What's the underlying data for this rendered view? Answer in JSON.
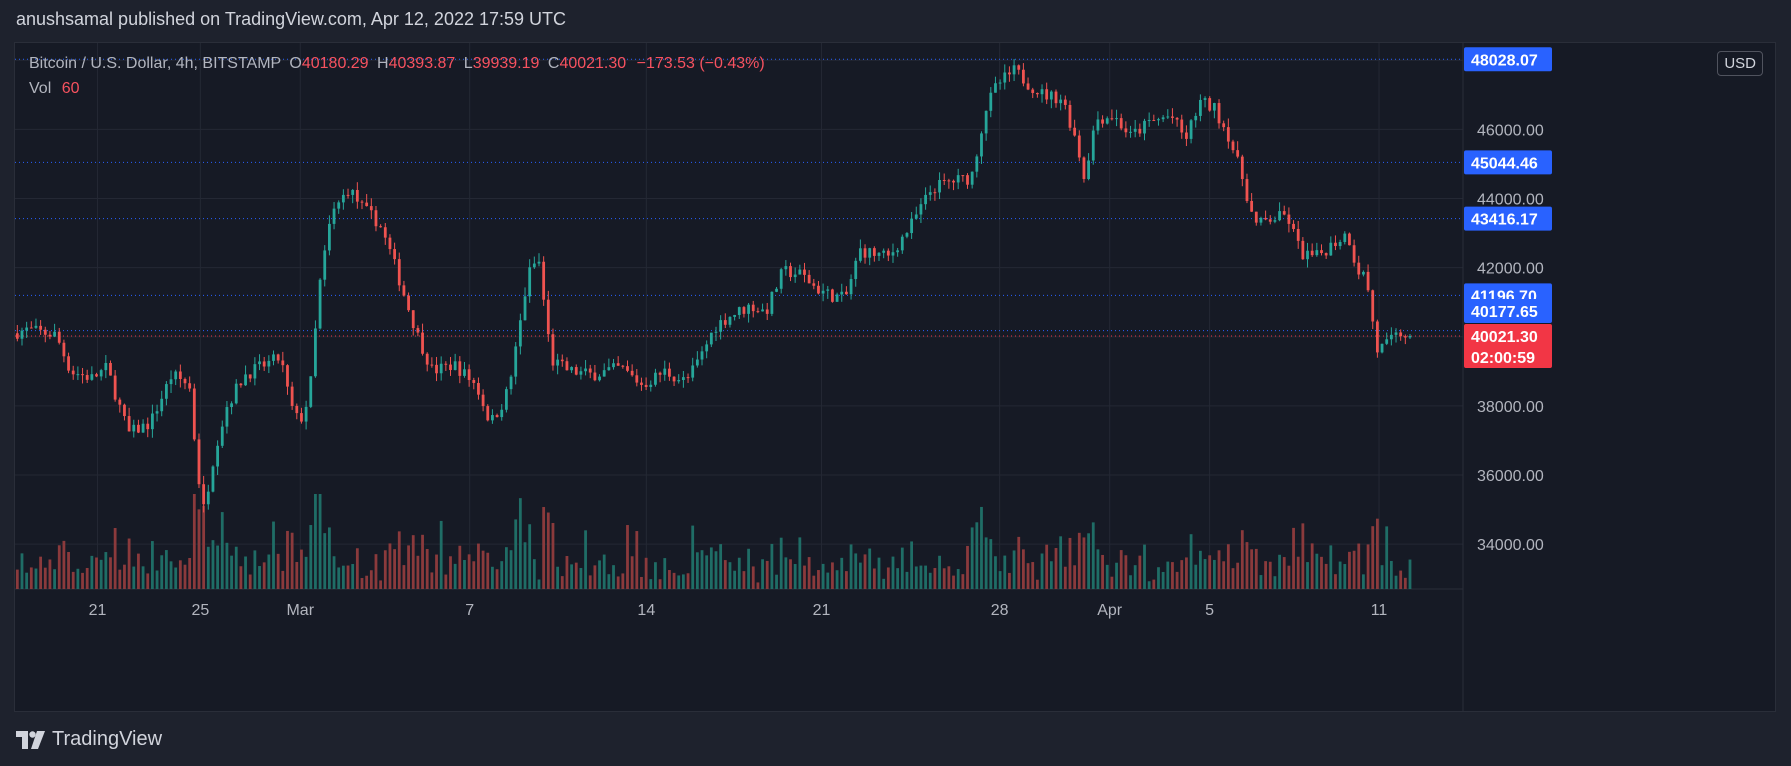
{
  "publisher": "anushsamal published on TradingView.com, Apr 12, 2022 17:59 UTC",
  "legend": {
    "symbol": "Bitcoin / U.S. Dollar, 4h, BITSTAMP",
    "open_label": "O",
    "open": "40180.29",
    "high_label": "H",
    "high": "40393.87",
    "low_label": "L",
    "low": "39939.19",
    "close_label": "C",
    "close": "40021.30",
    "change": "−173.53 (−0.43%)",
    "vol_label": "Vol",
    "vol_value": "60"
  },
  "currency": "USD",
  "footer": {
    "brand": "TradingView"
  },
  "colors": {
    "up": "#26a69a",
    "down": "#ef5350",
    "up_vol": "#1f6d66",
    "down_vol": "#8b3a3c",
    "tag_blue": "#2962ff",
    "tag_red": "#f23645",
    "grid": "#242834",
    "level_line": "#2962ff"
  },
  "chart_data": {
    "type": "candlestick",
    "ylim": [
      32700,
      48500
    ],
    "y_ticks": [
      34000,
      36000,
      38000,
      40000,
      42000,
      44000,
      46000,
      48000
    ],
    "y_tick_labels": [
      "34000.00",
      "36000.00",
      "38000.00",
      "40000.00",
      "42000.00",
      "44000.00",
      "46000.00",
      "48000.00"
    ],
    "x_ticks": [
      {
        "label": "21",
        "x": 0.057
      },
      {
        "label": "25",
        "x": 0.128
      },
      {
        "label": "Mar",
        "x": 0.197
      },
      {
        "label": "7",
        "x": 0.314
      },
      {
        "label": "14",
        "x": 0.436
      },
      {
        "label": "21",
        "x": 0.557
      },
      {
        "label": "28",
        "x": 0.68
      },
      {
        "label": "Apr",
        "x": 0.756
      },
      {
        "label": "5",
        "x": 0.825
      },
      {
        "label": "11",
        "x": 0.942
      }
    ],
    "levels": [
      {
        "value": 48028.07,
        "label": "48028.07",
        "kind": "blue"
      },
      {
        "value": 45044.46,
        "label": "45044.46",
        "kind": "blue"
      },
      {
        "value": 43416.17,
        "label": "43416.17",
        "kind": "blue"
      },
      {
        "value": 41196.7,
        "label": "41196.70",
        "kind": "blue"
      },
      {
        "value": 40177.65,
        "label": "40177.65",
        "kind": "blue"
      }
    ],
    "last_price": {
      "value": 40021.3,
      "label": "40021.30",
      "countdown": "02:00:59"
    },
    "anchors": [
      [
        0.0,
        40100
      ],
      [
        0.01,
        40200
      ],
      [
        0.03,
        40050
      ],
      [
        0.04,
        39000
      ],
      [
        0.055,
        38800
      ],
      [
        0.065,
        39100
      ],
      [
        0.08,
        37200
      ],
      [
        0.095,
        37500
      ],
      [
        0.11,
        38900
      ],
      [
        0.122,
        38600
      ],
      [
        0.128,
        36000
      ],
      [
        0.132,
        35000
      ],
      [
        0.14,
        36800
      ],
      [
        0.148,
        38000
      ],
      [
        0.16,
        38900
      ],
      [
        0.175,
        39200
      ],
      [
        0.185,
        39400
      ],
      [
        0.192,
        38000
      ],
      [
        0.198,
        37500
      ],
      [
        0.205,
        38300
      ],
      [
        0.212,
        41500
      ],
      [
        0.22,
        43500
      ],
      [
        0.232,
        44300
      ],
      [
        0.242,
        43700
      ],
      [
        0.253,
        43300
      ],
      [
        0.262,
        42300
      ],
      [
        0.272,
        41000
      ],
      [
        0.28,
        40000
      ],
      [
        0.29,
        39000
      ],
      [
        0.305,
        39200
      ],
      [
        0.32,
        38600
      ],
      [
        0.33,
        37500
      ],
      [
        0.34,
        38200
      ],
      [
        0.345,
        39000
      ],
      [
        0.356,
        41800
      ],
      [
        0.363,
        42300
      ],
      [
        0.372,
        39300
      ],
      [
        0.385,
        39000
      ],
      [
        0.4,
        38900
      ],
      [
        0.42,
        39100
      ],
      [
        0.435,
        38600
      ],
      [
        0.45,
        39000
      ],
      [
        0.465,
        38700
      ],
      [
        0.475,
        39400
      ],
      [
        0.485,
        40300
      ],
      [
        0.495,
        40600
      ],
      [
        0.51,
        40900
      ],
      [
        0.52,
        40700
      ],
      [
        0.532,
        41900
      ],
      [
        0.545,
        41800
      ],
      [
        0.555,
        41400
      ],
      [
        0.565,
        41200
      ],
      [
        0.575,
        41100
      ],
      [
        0.585,
        42500
      ],
      [
        0.595,
        42400
      ],
      [
        0.605,
        42300
      ],
      [
        0.62,
        43200
      ],
      [
        0.635,
        44300
      ],
      [
        0.648,
        44500
      ],
      [
        0.662,
        44600
      ],
      [
        0.672,
        46600
      ],
      [
        0.68,
        47300
      ],
      [
        0.692,
        47700
      ],
      [
        0.702,
        47300
      ],
      [
        0.712,
        47000
      ],
      [
        0.725,
        46900
      ],
      [
        0.735,
        45600
      ],
      [
        0.74,
        44600
      ],
      [
        0.748,
        46300
      ],
      [
        0.76,
        46400
      ],
      [
        0.772,
        45800
      ],
      [
        0.785,
        46200
      ],
      [
        0.8,
        46400
      ],
      [
        0.81,
        45700
      ],
      [
        0.82,
        46800
      ],
      [
        0.83,
        46600
      ],
      [
        0.84,
        45800
      ],
      [
        0.85,
        44500
      ],
      [
        0.858,
        43200
      ],
      [
        0.868,
        43400
      ],
      [
        0.88,
        43500
      ],
      [
        0.89,
        42400
      ],
      [
        0.9,
        42300
      ],
      [
        0.912,
        42700
      ],
      [
        0.922,
        43000
      ],
      [
        0.928,
        42000
      ],
      [
        0.935,
        41700
      ],
      [
        0.942,
        39600
      ],
      [
        0.95,
        39800
      ],
      [
        0.958,
        40100
      ],
      [
        0.965,
        40021
      ]
    ]
  }
}
